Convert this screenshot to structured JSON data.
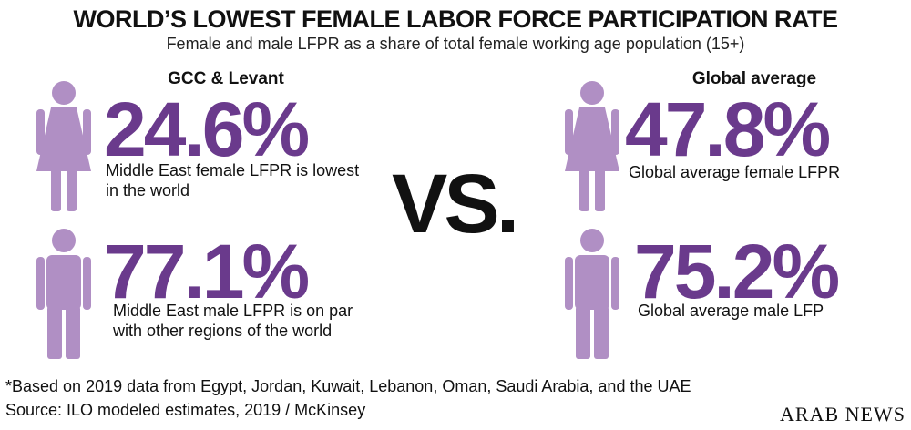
{
  "header": {
    "title": "WORLD’S LOWEST FEMALE LABOR FORCE PARTICIPATION RATE",
    "subtitle": "Female and male LFPR as a share of total female working age population (15+)"
  },
  "panels": [
    {
      "title": "GCC & Levant",
      "stats": [
        {
          "value": "24.6%",
          "description": "Middle East female LFPR is lowest in the world"
        },
        {
          "value": "77.1%",
          "description": "Middle East male LFPR is on par with other regions of the world"
        }
      ]
    },
    {
      "title": "Global average",
      "stats": [
        {
          "value": "47.8%",
          "description": "Global average female LFPR"
        },
        {
          "value": "75.2%",
          "description": "Global average male LFP"
        }
      ]
    }
  ],
  "versus": "VS.",
  "footer": {
    "note": "*Based on 2019 data from Egypt, Jordan, Kuwait, Lebanon, Oman, Saudi Arabia, and the UAE",
    "source": "Source: ILO modeled estimates, 2019 / McKinsey",
    "brand": "ARAB NEWS"
  }
}
